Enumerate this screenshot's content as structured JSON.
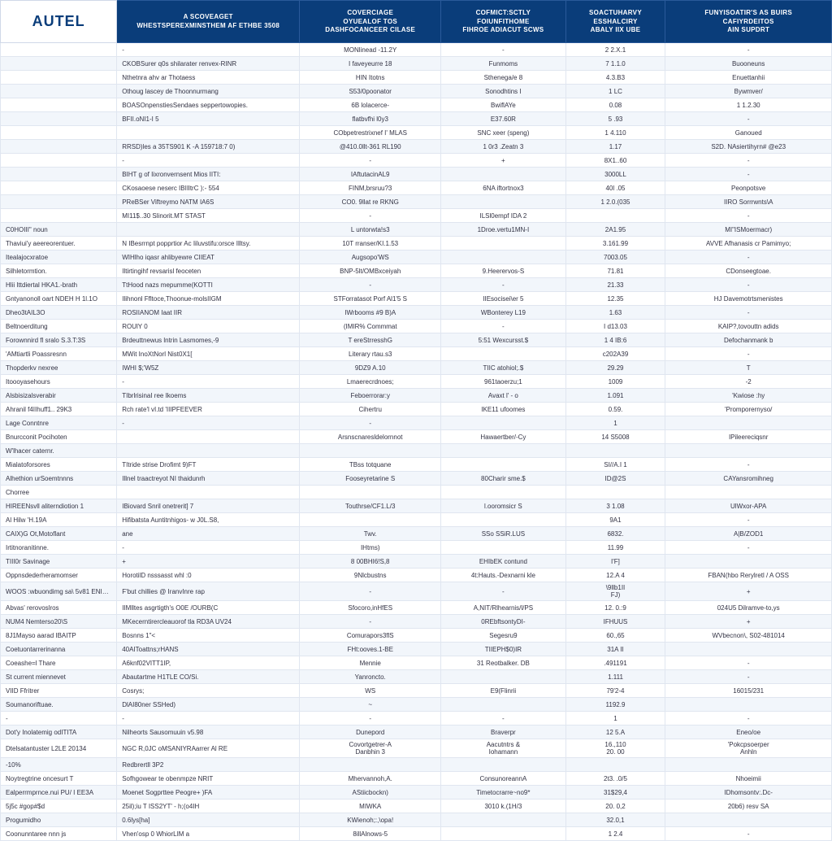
{
  "brand": "AUTEL",
  "colors": {
    "header_bg": "#0a3d7a",
    "header_fg": "#ffffff",
    "row_alt_bg": "#f2f6fb",
    "border": "#e0e6f0",
    "text": "#333344"
  },
  "table": {
    "headers": [
      "",
      "A SCOVEAGET\nWHESTSPEREXMINSTHEM AF ETHBE 3508",
      "COVERCIAGE\nOYUEALOF TOS\nDASHFOCANCEER CILASE",
      "COFMICT:SCTLY\nFOIUNFITHOME\nFIHROE ADIACUT SCWS",
      "SOACTUHARVY\nESSHALCIRY\nABALY IIX UBE",
      "FUNYISOATIR'S AS BUIRS\nCAFIYRDEITOS\nAIN SUPDRT"
    ],
    "rows": [
      [
        "",
        "-",
        "MONlinead -11.2Y",
        "-",
        "2 2.X.1",
        "-"
      ],
      [
        "",
        "CKOBSurer q0s shilarater renvex-RINR",
        "I faveyeurre 18",
        "Funmoms",
        "7 1.1.0",
        "Buooneuns"
      ],
      [
        "",
        "Nthetnra ahv ar Thotaess",
        "HIN Itotns",
        "Sthenega/e 8",
        "4.3.B3",
        "Enuettanhii"
      ],
      [
        "",
        "Othoug lascey de Thoonnurmang",
        "S53/0poonator",
        "Sonodhtins I",
        "1 LC",
        "Bywmver/"
      ],
      [
        "",
        "BOASOnpenstiesSendaes seppertowopies.",
        "6B lolacerce-",
        "BwiflAYe",
        "0.08",
        "1 1.2.30"
      ],
      [
        "",
        "BFII.oNI1-I 5",
        "flatbvfhi l0y3",
        "E37.60R",
        "5 .93",
        "-"
      ],
      [
        "",
        "",
        "CObpetrestrixnef I' MLAS",
        "SNC xeer (speng)",
        "1 4.110",
        "Ganoued"
      ],
      [
        "",
        "RRSD)les a 35TS901 K -A 159718:7 0)",
        "@410.0llt-361 RL190",
        "1 0r3 .Zeatn 3",
        "1.17",
        "S2D. NAsiertihyrn# @e23"
      ],
      [
        "",
        "-",
        "-",
        "+",
        "8X1..60",
        "-"
      ],
      [
        "",
        "BIHT g of Iixronvernsent Mios IITI:",
        "IAftutacinAL9",
        "",
        "3000LL",
        "-"
      ],
      [
        "",
        "CKosaoese neserc IBIIltrC ):- 554",
        "FINM,brsruu?3",
        "6NA iftortnox3",
        "40l .05",
        "Peonpotsve"
      ],
      [
        "",
        "PReBSer Viftreymo NATM IA6S",
        "CO0. 9llat re RKNG",
        "",
        "1 2.0.(035",
        "IIRO Sorrrwnts\\A"
      ],
      [
        "",
        "MI11$..30 Slinorit.MT STAST",
        "-",
        "ILSl0empf IDA 2",
        "",
        "-"
      ],
      [
        "C0HOIII\" noun",
        "",
        "L untorwta!s3",
        "1Droe.vertu1MN-I",
        "2A1.95",
        "MI\"ISMoermacr)"
      ],
      [
        "Thaviui'y aeereorentuer.",
        "N IBesrrnpt popprtior Ac Iiluvstifu:orsce Illtsy.",
        "10T rranser/KI.1.53",
        "",
        "3.161.99",
        "AVVE Afhanasis cr Pamimyo;"
      ],
      [
        "Itealajocxratoe",
        "WIHlho iqasr ahlibyewre CIIEAT",
        "Augsopo'WS",
        "",
        "7003.05",
        "-"
      ],
      [
        "Silhletormtion.",
        "Iltirtingihf revsarisl feoceten",
        "BNP-5lt/OMBxceiyah",
        "9.Heerervos-S",
        "71.81",
        "CDonseegtoae."
      ],
      [
        "Hlii Ittdiertal HKA1.-brath",
        "TtHood nazs mepumme(KOTTI",
        "-",
        "-",
        "21.33",
        "-"
      ],
      [
        "Gntyanonoll oart NDEH H 1l.1O",
        "Ilihnonl Ffltoce,Thoonue-molsIIGM",
        "STForratasot Porf Al1'5 S",
        "IIEsocisei\\er 5",
        "12.35",
        "HJ Davemotrtsmenistes"
      ],
      [
        "Dheo3tAIL3O",
        "ROSIIANOM Iaat IIR",
        "IWrbooms #9 B)A",
        "WBonterey L19",
        "1.63",
        "-"
      ],
      [
        "Beltnoerditung",
        "ROUlY 0",
        "(IMIR% Commmat",
        "-",
        "I d13.03",
        "KAIP?,tovouttn adids"
      ],
      [
        "Forownnird fl sralo S.3.T:3S",
        "Brdeuttnewus lntrin Lasmomes,-9",
        "T ereStrresshG",
        "5:51 Wexcursst.$",
        "1 4 IB:6",
        "Defochanmank b"
      ],
      [
        "'AMtiartli Poassresnn",
        "MWit InoXtNorl Nist0X1[",
        "Literary rtau.s3",
        "",
        "c202A39",
        "-"
      ],
      [
        "Thopderkv nexree",
        "IWHI $;'W5Z",
        "9DZ9 A.10",
        "TIIC atohiol;.$",
        "29.29",
        "T"
      ],
      [
        "Itoooyasehours",
        "-",
        "Lmaerecrdnoes;",
        "961taoerzu;1",
        "1009",
        "-2"
      ],
      [
        "Alsbisizalsverabir",
        "TIbrlrisinaI ree Ikoems",
        "Feboerrorar:y",
        "Avaxt l' - o",
        "1.091",
        "'Kwiose :hy"
      ],
      [
        "Ahranil f4IIhuff1.. 29K3",
        "Rch rate'l vI.td 'IIIPFEEVER",
        "Cihertru",
        "IKE11 ufoomes",
        "0.59.",
        "'Promporernyso/"
      ],
      [
        "Lage Conntnre",
        "-",
        "-",
        "",
        "1",
        ""
      ],
      [
        "Bnurcconit Pocihoten",
        "",
        "Arsnscnaresldelornnot",
        "Hawaertber/-Cy",
        "14 S5008",
        "IPileereciqsnr"
      ],
      [
        "W'lhacer caternr.",
        "",
        "",
        "",
        "",
        ""
      ],
      [
        "Mialatoforsores",
        "TItride strise Drofimt 9)FT",
        "TBss totquane",
        "",
        "SI//A.I 1",
        "-"
      ],
      [
        "Alhethion urSoemtnnns",
        "Illnel traactreyot NI thaidunrh",
        "Fooseyretarine S",
        "80Charir sme.$",
        "ID@2S",
        "CAYansromihneg"
      ],
      [
        "Chorree",
        "",
        "",
        "",
        "",
        ""
      ],
      [
        "HIREENsvll aliterndiotion 1",
        "IBiovard Snril onetrerit] 7",
        "Touthrse/CF1.L/3",
        "l.ooromsicr S",
        "3 1.08",
        "UlWxor-APA"
      ],
      [
        "Al Hilw 'H.19A",
        "Hifibatsta Auntitnhigos- w J0L.S8,",
        "",
        "",
        "9A1",
        "-"
      ],
      [
        "CAIX)G Ot,Motoflant",
        "ane",
        "Twv.",
        "SSo SSiR.LUS",
        "6832.",
        "A|B/ZOD1"
      ],
      [
        "Irtitnoranitinne.",
        "-",
        "IHtms)",
        "",
        "11.99",
        "-"
      ],
      [
        "TIII0r Savinage",
        "+",
        "8 00BHI6!S,8",
        "EHIbEK contund",
        "I'F]",
        ""
      ],
      [
        "Oppnsdederheramomser",
        "HorotilD nsssasst whl :0",
        "9Nlcbustns",
        "4t:Hauts.-Dexnarni kle",
        "12.A 4",
        "FBAN(hbo Rerylretl / A OSS"
      ],
      [
        "WOOS :wbuondimg sa\\ 5v81 ENID6O",
        "F'but chillies @ IranvInre rap",
        "-",
        "-",
        "\\9llb1II\nFJ)",
        "+"
      ],
      [
        "Abvas' rerovoslros",
        "IIMlltes asgrtigth's O0E /OURB(C",
        "Sfocoro,inHfES",
        "A,NIT/Rlhearnis/l/PS",
        "12. 0.:9",
        "024U5 Dilramve-to,ys"
      ],
      [
        "NUM4 Nemterso20\\S",
        "MKecerntirercleauorof tla RD3A UV24",
        "-",
        "0REbftsontyDI-",
        "IFHUUS",
        "+"
      ],
      [
        "8J1Mayso aarad IBAITP",
        "Bosnns 1\"<",
        "Comurapors3flS",
        "Segesru9",
        "60.,65",
        "WVbecnon\\, S02-481014"
      ],
      [
        "Coetuontarrerinanna",
        "40AIToattns;rHANS",
        "FHt:ooves.1-BE",
        "TIIEPH$0)IR",
        "31A II",
        "",
        ""
      ],
      [
        "Coeashe=l Thare",
        "A6knf02VITT1IP,",
        "Mennie",
        "31 Reotbalker. DB",
        ".491191",
        "-"
      ],
      [
        "St current miennevet",
        "Abautartme H1TLE CO/Si.",
        "Yanroncto.",
        "",
        "1.111",
        "-"
      ],
      [
        "VIID Ffritrer",
        "Cosrys;",
        "WS",
        "E9(Flinrii",
        "79'2-4",
        "16015/231"
      ],
      [
        "Soumanoriftuae.",
        "DlAI80ner SSHed)",
        "~",
        "",
        "1192.9",
        ""
      ],
      [
        "-",
        "-",
        "-",
        "-",
        "1",
        "-"
      ],
      [
        "Dot'y Inolatemig odITITA",
        "Nilheorts Sausomuuin v5.98",
        "Dunepord",
        "Braverpr",
        "12 5.A",
        "Eneo/oe"
      ],
      [
        "Dtelsatantuster L2LE 20134",
        "NGC R,0JC oMSANIYRAarrer Al RE",
        "Covortgetrer-A\nDanbhin 3",
        "Aacutntrs &\nIohamann",
        "16.,110\n20. 00",
        "'Pokcpsoerper\nAnhln"
      ],
      [
        "-10%",
        "Redbrertll 3P2",
        "",
        "",
        "",
        ""
      ],
      [
        "Noytregtrine oncesurt T",
        "Sofhgowear te obenmpze NRIT",
        "Mhervannoh,A.",
        "ConsunoreannA",
        "2t3. .0/5",
        "Nhoeimii"
      ],
      [
        "Ealperrmprnce.nui PU/ I EE3A",
        "Moenet Sogprttee Peogre+ )FA",
        "AStiicbockn)",
        "Timetocrarre~no9*",
        "31$29,4",
        "IDhomsontv:.Dc-"
      ],
      [
        "5j5c #gop#$d",
        "25il);iu T ISS2YT' - h;(o4IH",
        "MIWKA",
        "3010 k.(1H/3",
        "20. 0,2",
        "20b6) resv SA"
      ],
      [
        "Progumidho",
        "0.6lys[ha]",
        "KWienoh;:,\\opa!",
        "",
        "32.0,1",
        ""
      ],
      [
        "Coonunntaree nnn js",
        "Vhen'osp 0 WhiorLIM a",
        "8illAlnows-5",
        "",
        "1 2.4",
        "-"
      ]
    ]
  }
}
